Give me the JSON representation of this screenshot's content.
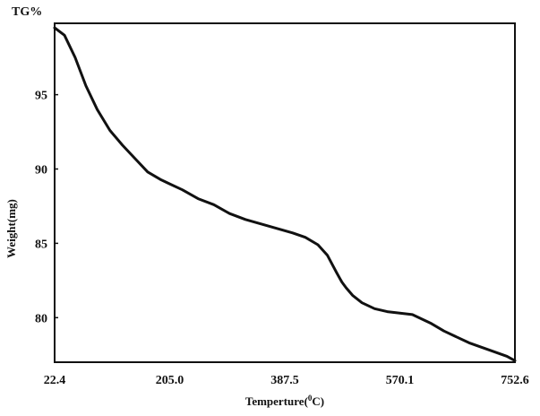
{
  "chart_data": {
    "type": "line",
    "title": "",
    "top_label": "TG%",
    "xlabel_main": "Temperture(",
    "xlabel_sup": "0",
    "xlabel_tail": "C)",
    "ylabel": "Weight(mg)",
    "xlim": [
      22.4,
      752.6
    ],
    "ylim": [
      77.0,
      99.8
    ],
    "grid": false,
    "legend": "none",
    "x_ticks": [
      {
        "value": 22.4,
        "label": "22.4"
      },
      {
        "value": 205.0,
        "label": "205.0"
      },
      {
        "value": 387.5,
        "label": "387.5"
      },
      {
        "value": 570.1,
        "label": "570.1"
      },
      {
        "value": 752.6,
        "label": "752.6"
      }
    ],
    "y_ticks": [
      {
        "value": 95,
        "label": "95"
      },
      {
        "value": 90,
        "label": "90"
      },
      {
        "value": 85,
        "label": "85"
      },
      {
        "value": 80,
        "label": "80"
      }
    ],
    "series": [
      {
        "color": "#111111",
        "x": [
          22.4,
          38,
          55,
          72,
          90,
          110,
          130,
          150,
          170,
          190,
          205,
          225,
          250,
          275,
          300,
          325,
          350,
          375,
          400,
          420,
          440,
          455,
          465,
          470,
          478,
          485,
          495,
          510,
          530,
          550,
          570,
          590,
          605,
          620,
          640,
          660,
          680,
          700,
          720,
          740,
          752.6
        ],
        "y": [
          99.5,
          99.0,
          97.5,
          95.6,
          94.0,
          92.6,
          91.6,
          90.7,
          89.8,
          89.3,
          89.0,
          88.6,
          88.0,
          87.6,
          87.0,
          86.6,
          86.3,
          86.0,
          85.7,
          85.4,
          84.9,
          84.2,
          83.4,
          83.0,
          82.4,
          82.0,
          81.5,
          81.0,
          80.6,
          80.4,
          80.3,
          80.2,
          79.9,
          79.6,
          79.1,
          78.7,
          78.3,
          78.0,
          77.7,
          77.4,
          77.1
        ]
      }
    ]
  }
}
